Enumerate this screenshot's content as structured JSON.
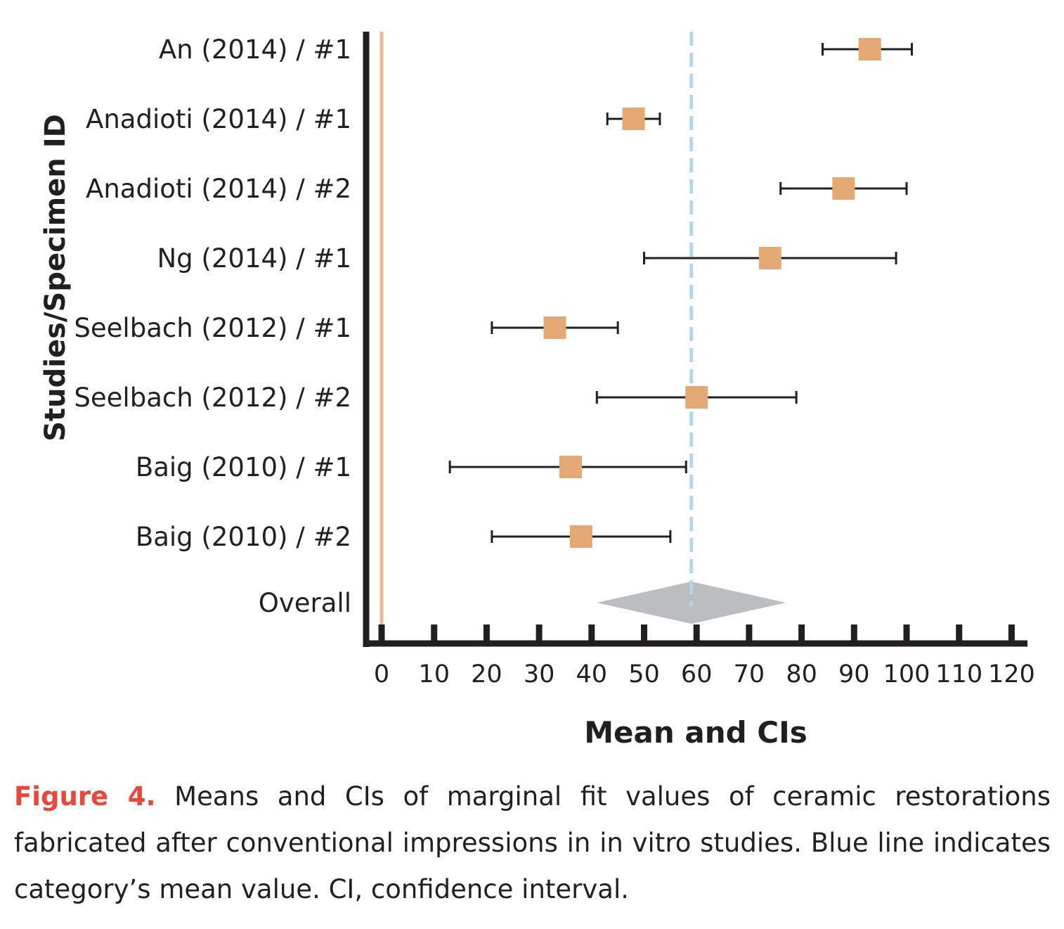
{
  "chart_data": {
    "type": "forest",
    "xlabel": "Mean and CIs",
    "ylabel": "Studies/Specimen ID",
    "xlim": [
      0,
      120
    ],
    "xticks": [
      0,
      10,
      20,
      30,
      40,
      50,
      60,
      70,
      80,
      90,
      100,
      110,
      120
    ],
    "studies": [
      {
        "label": "An (2014) / #1",
        "mean": 93,
        "ci_low": 84,
        "ci_high": 101
      },
      {
        "label": "Anadioti (2014) / #1",
        "mean": 48,
        "ci_low": 43,
        "ci_high": 53
      },
      {
        "label": "Anadioti (2014) / #2",
        "mean": 88,
        "ci_low": 76,
        "ci_high": 100
      },
      {
        "label": "Ng (2014) / #1",
        "mean": 74,
        "ci_low": 50,
        "ci_high": 98
      },
      {
        "label": "Seelbach (2012) / #1",
        "mean": 33,
        "ci_low": 21,
        "ci_high": 45
      },
      {
        "label": "Seelbach (2012) / #2",
        "mean": 60,
        "ci_low": 41,
        "ci_high": 79
      },
      {
        "label": "Baig (2010) / #1",
        "mean": 36,
        "ci_low": 13,
        "ci_high": 58
      },
      {
        "label": "Baig (2010) / #2",
        "mean": 38,
        "ci_low": 21,
        "ci_high": 55
      }
    ],
    "overall": {
      "label": "Overall",
      "mean": 59,
      "ci_low": 41,
      "ci_high": 77
    },
    "reference_line": 0,
    "category_mean_line": 59,
    "colors": {
      "marker": "#e3a873",
      "error_bar": "#231f20",
      "axis": "#231f20",
      "mean_line": "#b3d6ef",
      "reference_line": "#eab79b",
      "overall_diamond": "#bcbdc0"
    }
  },
  "caption": {
    "label": "Figure 4.",
    "text": "Means and CIs of marginal fit values of ceramic restorations fabricated after conventional impressions in in vitro studies. Blue line indicates category’s mean value. CI, confidence interval.",
    "label_color": "#e8483a"
  }
}
